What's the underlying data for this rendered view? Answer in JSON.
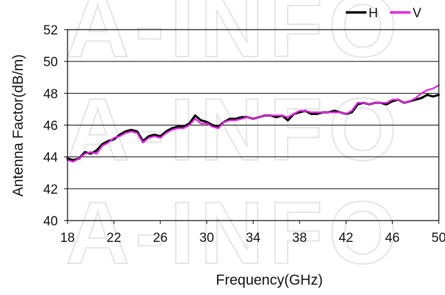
{
  "watermark": "A-INFO",
  "chart_data": {
    "type": "line",
    "xlabel": "Frequency(GHz)",
    "ylabel": "Antenna Factor(dB/m)",
    "xlim": [
      18,
      50
    ],
    "ylim": [
      40,
      52
    ],
    "x_ticks": [
      18,
      22,
      26,
      30,
      34,
      38,
      42,
      46,
      50
    ],
    "y_ticks": [
      40,
      42,
      44,
      46,
      48,
      50,
      52
    ],
    "grid": "horizontal",
    "legend_position": "top-right",
    "series": [
      {
        "name": "H",
        "color": "#000000",
        "x": [
          18,
          18.5,
          19,
          19.5,
          20,
          20.5,
          21,
          21.5,
          22,
          22.5,
          23,
          23.5,
          24,
          24.5,
          25,
          25.5,
          26,
          26.5,
          27,
          27.5,
          28,
          28.5,
          29,
          29.5,
          30,
          30.5,
          31,
          31.5,
          32,
          32.5,
          33,
          33.5,
          34,
          34.5,
          35,
          35.5,
          36,
          36.5,
          37,
          37.5,
          38,
          38.5,
          39,
          39.5,
          40,
          40.5,
          41,
          41.5,
          42,
          42.5,
          43,
          43.5,
          44,
          44.5,
          45,
          45.5,
          46,
          46.5,
          47,
          47.5,
          48,
          48.5,
          49,
          49.5,
          50
        ],
        "values": [
          43.9,
          43.8,
          43.9,
          44.3,
          44.2,
          44.4,
          44.8,
          45.0,
          45.1,
          45.4,
          45.6,
          45.7,
          45.6,
          45.0,
          45.3,
          45.4,
          45.3,
          45.6,
          45.8,
          45.9,
          45.9,
          46.1,
          46.6,
          46.3,
          46.2,
          46.0,
          45.9,
          46.2,
          46.4,
          46.4,
          46.5,
          46.5,
          46.4,
          46.5,
          46.6,
          46.6,
          46.5,
          46.6,
          46.3,
          46.7,
          46.8,
          46.9,
          46.7,
          46.7,
          46.8,
          46.8,
          46.9,
          46.8,
          46.7,
          46.8,
          47.3,
          47.4,
          47.3,
          47.4,
          47.4,
          47.3,
          47.5,
          47.6,
          47.4,
          47.5,
          47.6,
          47.7,
          47.9,
          47.8,
          47.9
        ]
      },
      {
        "name": "V",
        "color": "#e026e0",
        "x": [
          18,
          18.5,
          19,
          19.5,
          20,
          20.5,
          21,
          21.5,
          22,
          22.5,
          23,
          23.5,
          24,
          24.5,
          25,
          25.5,
          26,
          26.5,
          27,
          27.5,
          28,
          28.5,
          29,
          29.5,
          30,
          30.5,
          31,
          31.5,
          32,
          32.5,
          33,
          33.5,
          34,
          34.5,
          35,
          35.5,
          36,
          36.5,
          37,
          37.5,
          38,
          38.5,
          39,
          39.5,
          40,
          40.5,
          41,
          41.5,
          42,
          42.5,
          43,
          43.5,
          44,
          44.5,
          45,
          45.5,
          46,
          46.5,
          47,
          47.5,
          48,
          48.5,
          49,
          49.5,
          50
        ],
        "values": [
          43.8,
          43.7,
          43.9,
          44.2,
          44.3,
          44.2,
          44.7,
          44.9,
          45.2,
          45.3,
          45.5,
          45.6,
          45.5,
          44.9,
          45.2,
          45.3,
          45.2,
          45.5,
          45.7,
          45.8,
          45.8,
          46.0,
          46.4,
          46.1,
          46.1,
          45.9,
          45.8,
          46.2,
          46.3,
          46.3,
          46.4,
          46.5,
          46.4,
          46.5,
          46.6,
          46.6,
          46.6,
          46.6,
          46.5,
          46.7,
          46.9,
          46.9,
          46.8,
          46.8,
          46.8,
          46.8,
          46.8,
          46.8,
          46.7,
          46.9,
          47.4,
          47.4,
          47.3,
          47.4,
          47.4,
          47.4,
          47.6,
          47.6,
          47.4,
          47.5,
          47.7,
          48.0,
          48.2,
          48.3,
          48.5
        ]
      }
    ]
  }
}
